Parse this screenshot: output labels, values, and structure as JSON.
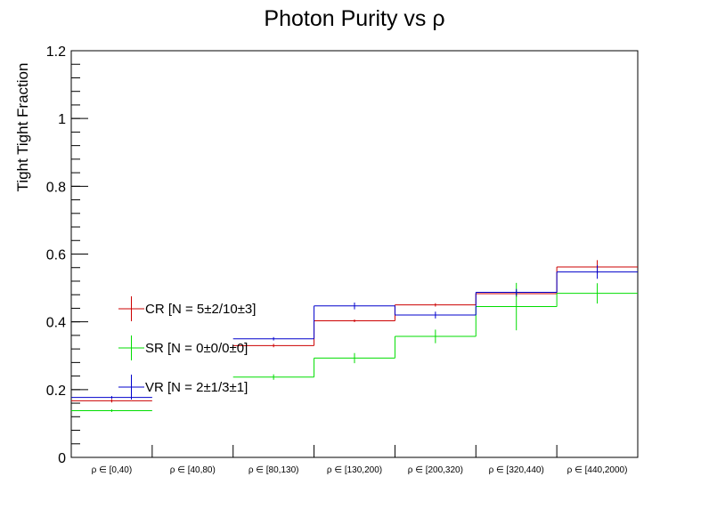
{
  "chart_data": {
    "type": "step",
    "title": "Photon Purity vs  ρ",
    "xlabel": "",
    "ylabel": "Tight Tight Fraction",
    "ylim": [
      0,
      1.2
    ],
    "yticks": [
      "0",
      "0.2",
      "0.4",
      "0.6",
      "0.8",
      "1",
      "1.2"
    ],
    "categories": [
      "ρ ∈ [0,40)",
      "ρ ∈ [40,80)",
      "ρ ∈ [80,130)",
      "ρ ∈ [130,200)",
      "ρ ∈ [200,320)",
      "ρ ∈ [320,440)",
      "ρ ∈ [440,2000)"
    ],
    "series": [
      {
        "name": "CR [N = 5±2/10±3]",
        "color": "#cc0000",
        "values": [
          0.167,
          null,
          0.33,
          0.403,
          0.45,
          0.483,
          0.562
        ],
        "errors": [
          0.005,
          null,
          0.005,
          0.004,
          0.005,
          0.01,
          0.02
        ]
      },
      {
        "name": "SR [N = 0±0/0±0]",
        "color": "#00dd00",
        "values": [
          0.138,
          null,
          0.237,
          0.293,
          0.357,
          0.445,
          0.484
        ],
        "errors": [
          0.004,
          null,
          0.008,
          0.015,
          0.02,
          0.07,
          0.03
        ]
      },
      {
        "name": "VR [N = 2±1/3±1]",
        "color": "#0000cc",
        "values": [
          0.177,
          null,
          0.35,
          0.447,
          0.42,
          0.487,
          0.547
        ],
        "errors": [
          0.004,
          null,
          0.005,
          0.01,
          0.01,
          0.01,
          0.02
        ]
      }
    ],
    "legend_position": "lower-left"
  }
}
